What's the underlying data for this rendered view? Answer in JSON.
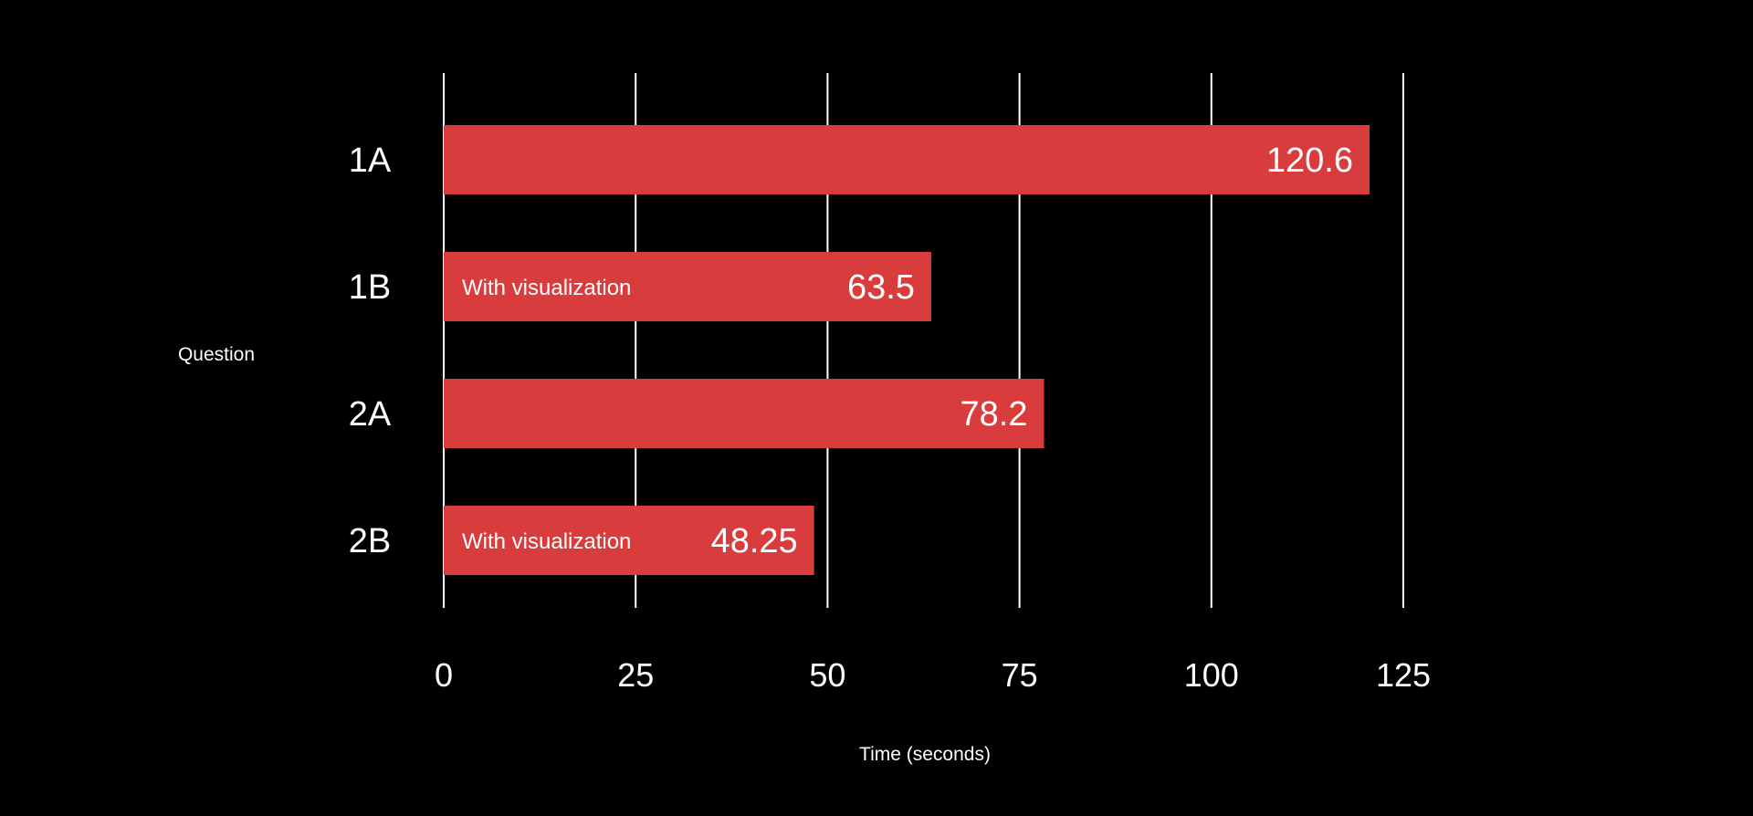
{
  "chart_data": {
    "type": "bar",
    "orientation": "horizontal",
    "categories": [
      "1A",
      "1B",
      "2A",
      "2B"
    ],
    "values": [
      120.6,
      63.5,
      78.2,
      48.25
    ],
    "value_labels": [
      "120.6",
      "63.5",
      "78.2",
      "48.25"
    ],
    "annotations": [
      "",
      "With visualization",
      "",
      "With visualization"
    ],
    "xlabel": "Time (seconds)",
    "ylabel": "Question",
    "xlim": [
      0,
      125
    ],
    "xticks": [
      0,
      25,
      50,
      75,
      100,
      125
    ],
    "xtick_labels": [
      "0",
      "25",
      "50",
      "75",
      "100",
      "125"
    ],
    "grid": true,
    "colors": {
      "background": "#000000",
      "bar": "#d93c3c",
      "text": "#ffffff",
      "grid": "#ffffff"
    }
  }
}
